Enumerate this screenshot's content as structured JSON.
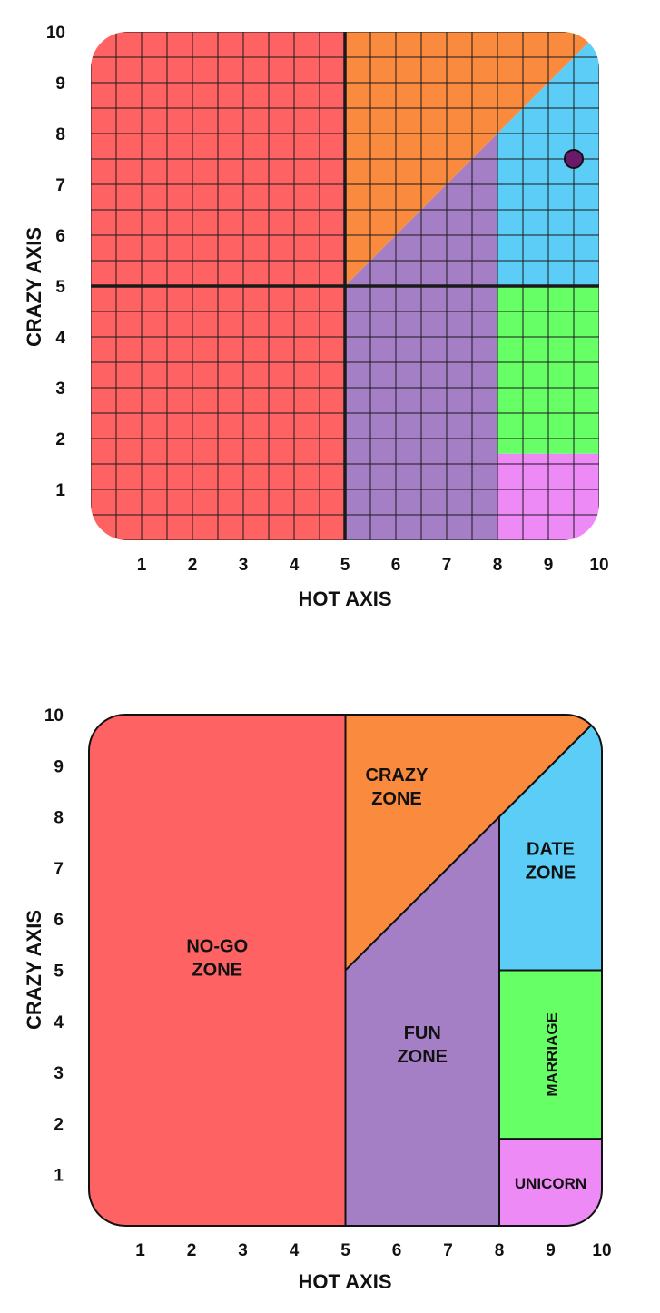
{
  "colors": {
    "no_go": "#ff6262",
    "crazy": "#fa8a3e",
    "fun": "#a57fc6",
    "date": "#5ccdf6",
    "marriage": "#66ff66",
    "unicorn": "#ee8af5",
    "grid": "#1a1a1a",
    "point": "#6b1a6b"
  },
  "chart_data": [
    {
      "type": "scatter",
      "xlabel": "HOT AXIS",
      "ylabel": "CRAZY AXIS",
      "xlim": [
        0,
        10
      ],
      "ylim": [
        0,
        10
      ],
      "x_ticks": [
        "1",
        "2",
        "3",
        "4",
        "5",
        "6",
        "7",
        "8",
        "9",
        "10"
      ],
      "y_ticks": [
        "1",
        "2",
        "3",
        "4",
        "5",
        "6",
        "7",
        "8",
        "9",
        "10"
      ],
      "grid": true,
      "grid_step": 0.5,
      "points": [
        {
          "x": 9.5,
          "y": 7.5
        }
      ],
      "zones": [
        {
          "id": "no_go",
          "polygon": [
            [
              0,
              0
            ],
            [
              5,
              0
            ],
            [
              5,
              10
            ],
            [
              0,
              10
            ]
          ]
        },
        {
          "id": "crazy",
          "polygon": [
            [
              5,
              5
            ],
            [
              10,
              10
            ],
            [
              5,
              10
            ]
          ]
        },
        {
          "id": "fun",
          "polygon": [
            [
              5,
              0
            ],
            [
              8,
              0
            ],
            [
              8,
              8
            ],
            [
              5,
              5
            ]
          ]
        },
        {
          "id": "date",
          "polygon": [
            [
              8,
              5
            ],
            [
              10,
              5
            ],
            [
              10,
              10
            ],
            [
              8,
              8
            ]
          ]
        },
        {
          "id": "marriage",
          "polygon": [
            [
              8,
              1.7
            ],
            [
              10,
              1.7
            ],
            [
              10,
              5
            ],
            [
              8,
              5
            ]
          ]
        },
        {
          "id": "unicorn",
          "polygon": [
            [
              8,
              0
            ],
            [
              10,
              0
            ],
            [
              10,
              1.7
            ],
            [
              8,
              1.7
            ]
          ]
        }
      ]
    },
    {
      "type": "area",
      "xlabel": "HOT AXIS",
      "ylabel": "CRAZY AXIS",
      "xlim": [
        0,
        10
      ],
      "ylim": [
        0,
        10
      ],
      "x_ticks": [
        "1",
        "2",
        "3",
        "4",
        "5",
        "6",
        "7",
        "8",
        "9",
        "10"
      ],
      "y_ticks": [
        "1",
        "2",
        "3",
        "4",
        "5",
        "6",
        "7",
        "8",
        "9",
        "10"
      ],
      "grid": false,
      "zones": [
        {
          "id": "no_go",
          "lines": [
            "NO-GO",
            "ZONE"
          ],
          "label_at": [
            2.5,
            5.25
          ],
          "polygon": [
            [
              0,
              0
            ],
            [
              5,
              0
            ],
            [
              5,
              10
            ],
            [
              0,
              10
            ]
          ]
        },
        {
          "id": "crazy",
          "lines": [
            "CRAZY",
            "ZONE"
          ],
          "label_at": [
            6.0,
            8.6
          ],
          "polygon": [
            [
              5,
              5
            ],
            [
              10,
              10
            ],
            [
              5,
              10
            ]
          ]
        },
        {
          "id": "fun",
          "lines": [
            "FUN",
            "ZONE"
          ],
          "label_at": [
            6.5,
            3.55
          ],
          "polygon": [
            [
              5,
              0
            ],
            [
              8,
              0
            ],
            [
              8,
              8
            ],
            [
              5,
              5
            ]
          ]
        },
        {
          "id": "date",
          "lines": [
            "DATE",
            "ZONE"
          ],
          "label_at": [
            9.0,
            7.15
          ],
          "polygon": [
            [
              8,
              5
            ],
            [
              10,
              5
            ],
            [
              10,
              10
            ],
            [
              8,
              8
            ]
          ]
        },
        {
          "id": "marriage",
          "lines": [
            "MARRIAGE"
          ],
          "label_at": [
            9.0,
            3.35
          ],
          "rotate": -90,
          "polygon": [
            [
              8,
              1.7
            ],
            [
              10,
              1.7
            ],
            [
              10,
              5
            ],
            [
              8,
              5
            ]
          ]
        },
        {
          "id": "unicorn",
          "lines": [
            "UNICORN"
          ],
          "label_at": [
            9.0,
            0.85
          ],
          "polygon": [
            [
              8,
              0
            ],
            [
              10,
              0
            ],
            [
              10,
              1.7
            ],
            [
              8,
              1.7
            ]
          ]
        }
      ]
    }
  ]
}
